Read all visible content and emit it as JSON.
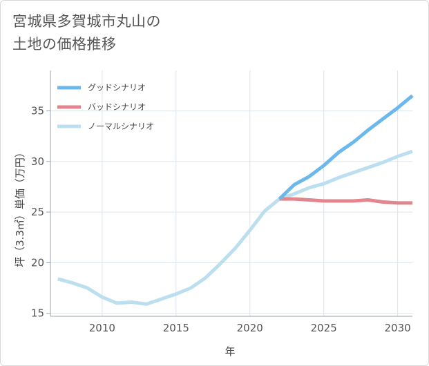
{
  "chart_data": {
    "type": "line",
    "title_line1": "宮城県多賀城市丸山の",
    "title_line2": "土地の価格推移",
    "xlabel": "年",
    "ylabel": "坪（3.3㎡）単価（万円）",
    "xlim": [
      2006.5,
      2031
    ],
    "ylim": [
      14.7,
      39
    ],
    "x_ticks": [
      2010,
      2015,
      2020,
      2025,
      2030
    ],
    "y_ticks": [
      15,
      20,
      25,
      30,
      35
    ],
    "grid": true,
    "legend_position": "top-left",
    "series": [
      {
        "name": "グッドシナリオ",
        "color": "#6bb8ec",
        "x": [
          2022,
          2023,
          2024,
          2025,
          2026,
          2027,
          2028,
          2029,
          2030,
          2031
        ],
        "y": [
          26.3,
          27.7,
          28.5,
          29.6,
          30.9,
          31.9,
          33.1,
          34.2,
          35.3,
          36.5
        ]
      },
      {
        "name": "バッドシナリオ",
        "color": "#e0868c",
        "x": [
          2022,
          2023,
          2024,
          2025,
          2026,
          2027,
          2028,
          2029,
          2030,
          2031
        ],
        "y": [
          26.3,
          26.3,
          26.2,
          26.1,
          26.1,
          26.1,
          26.2,
          26.0,
          25.9,
          25.9
        ]
      },
      {
        "name": "ノーマルシナリオ",
        "color": "#bcdff0",
        "x": [
          2007,
          2008,
          2009,
          2010,
          2011,
          2012,
          2013,
          2014,
          2015,
          2016,
          2017,
          2018,
          2019,
          2020,
          2021,
          2022,
          2023,
          2024,
          2025,
          2026,
          2027,
          2028,
          2029,
          2030,
          2031
        ],
        "y": [
          18.4,
          18.0,
          17.5,
          16.6,
          16.0,
          16.1,
          15.9,
          16.4,
          16.9,
          17.5,
          18.5,
          19.9,
          21.4,
          23.2,
          25.1,
          26.3,
          26.8,
          27.4,
          27.8,
          28.4,
          28.9,
          29.4,
          29.9,
          30.5,
          31.0
        ]
      }
    ]
  }
}
